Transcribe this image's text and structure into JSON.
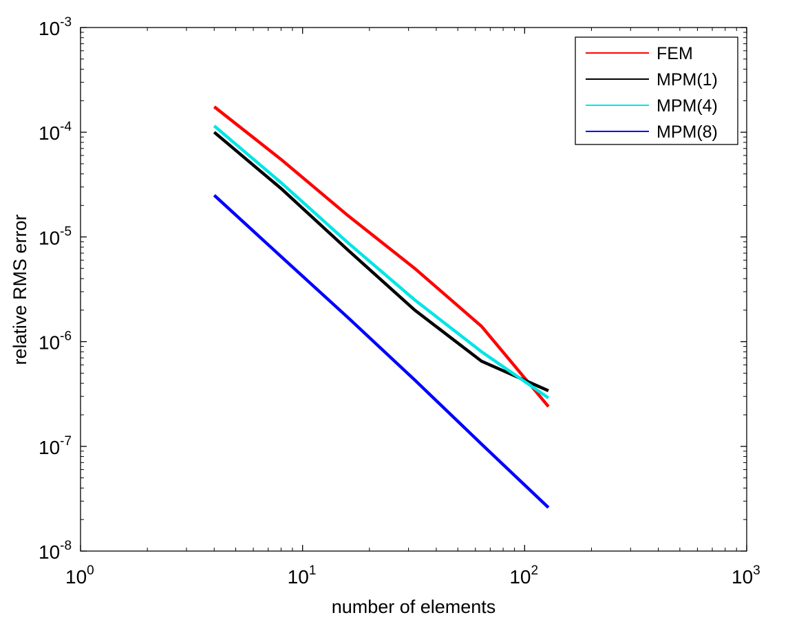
{
  "chart_data": {
    "type": "line",
    "title": "",
    "xlabel": "number of elements",
    "ylabel": "relative RMS error",
    "x_scale": "log",
    "y_scale": "log",
    "xlim": [
      1,
      1000
    ],
    "ylim": [
      1e-08,
      0.001
    ],
    "x_ticks": [
      {
        "value": 1,
        "base": "10",
        "exp": "0"
      },
      {
        "value": 10,
        "base": "10",
        "exp": "1"
      },
      {
        "value": 100,
        "base": "10",
        "exp": "2"
      },
      {
        "value": 1000,
        "base": "10",
        "exp": "3"
      }
    ],
    "y_ticks": [
      {
        "value": 1e-08,
        "base": "10",
        "exp": "-8"
      },
      {
        "value": 1e-07,
        "base": "10",
        "exp": "-7"
      },
      {
        "value": 1e-06,
        "base": "10",
        "exp": "-6"
      },
      {
        "value": 1e-05,
        "base": "10",
        "exp": "-5"
      },
      {
        "value": 0.0001,
        "base": "10",
        "exp": "-4"
      },
      {
        "value": 0.001,
        "base": "10",
        "exp": "-3"
      }
    ],
    "grid": false,
    "legend_position": "top-right",
    "x": [
      4,
      8,
      16,
      32,
      64,
      128
    ],
    "series": [
      {
        "name": "FEM",
        "color": "#ff0000",
        "values": [
          0.000175,
          5.5e-05,
          1.6e-05,
          5e-06,
          1.4e-06,
          2.4e-07
        ]
      },
      {
        "name": "MPM(1)",
        "color": "#000000",
        "values": [
          0.0001,
          2.9e-05,
          7.5e-06,
          2e-06,
          6.5e-07,
          3.4e-07
        ]
      },
      {
        "name": "MPM(4)",
        "color": "#00e5e5",
        "values": [
          0.000115,
          3.3e-05,
          8.8e-06,
          2.5e-06,
          8e-07,
          2.9e-07
        ]
      },
      {
        "name": "MPM(8)",
        "color": "#0000ff",
        "values": [
          2.5e-05,
          6.5e-06,
          1.7e-06,
          4.3e-07,
          1.05e-07,
          2.6e-08
        ]
      }
    ]
  }
}
